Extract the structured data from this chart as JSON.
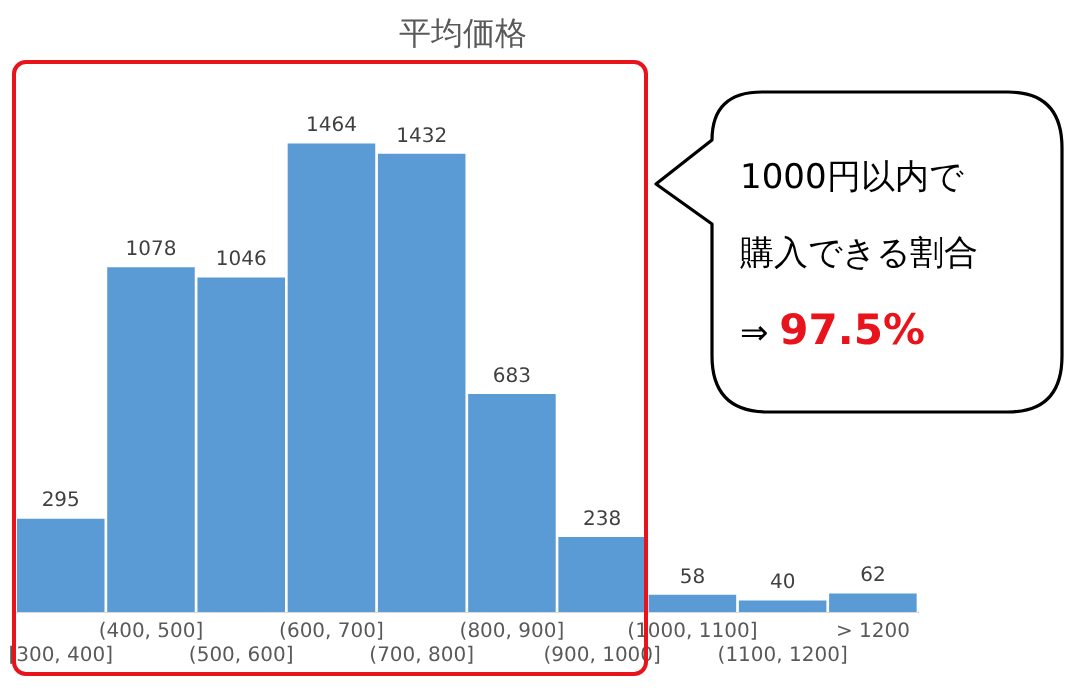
{
  "chart_data": {
    "type": "bar",
    "title": "平均価格",
    "categories": [
      "[300, 400]",
      "(400, 500]",
      "(500, 600]",
      "(600, 700]",
      "(700, 800]",
      "(800, 900]",
      "(900, 1000]",
      "(1000, 1100]",
      "(1100, 1200]",
      "> 1200"
    ],
    "values": [
      295,
      1078,
      1046,
      1464,
      1432,
      683,
      238,
      58,
      40,
      62
    ],
    "color": "#5b9bd5",
    "data_labels": true,
    "grid": false,
    "legend": false,
    "annotations": [
      "1000円以内で",
      "購入できる割合",
      "⇒ 97.5%"
    ]
  }
}
